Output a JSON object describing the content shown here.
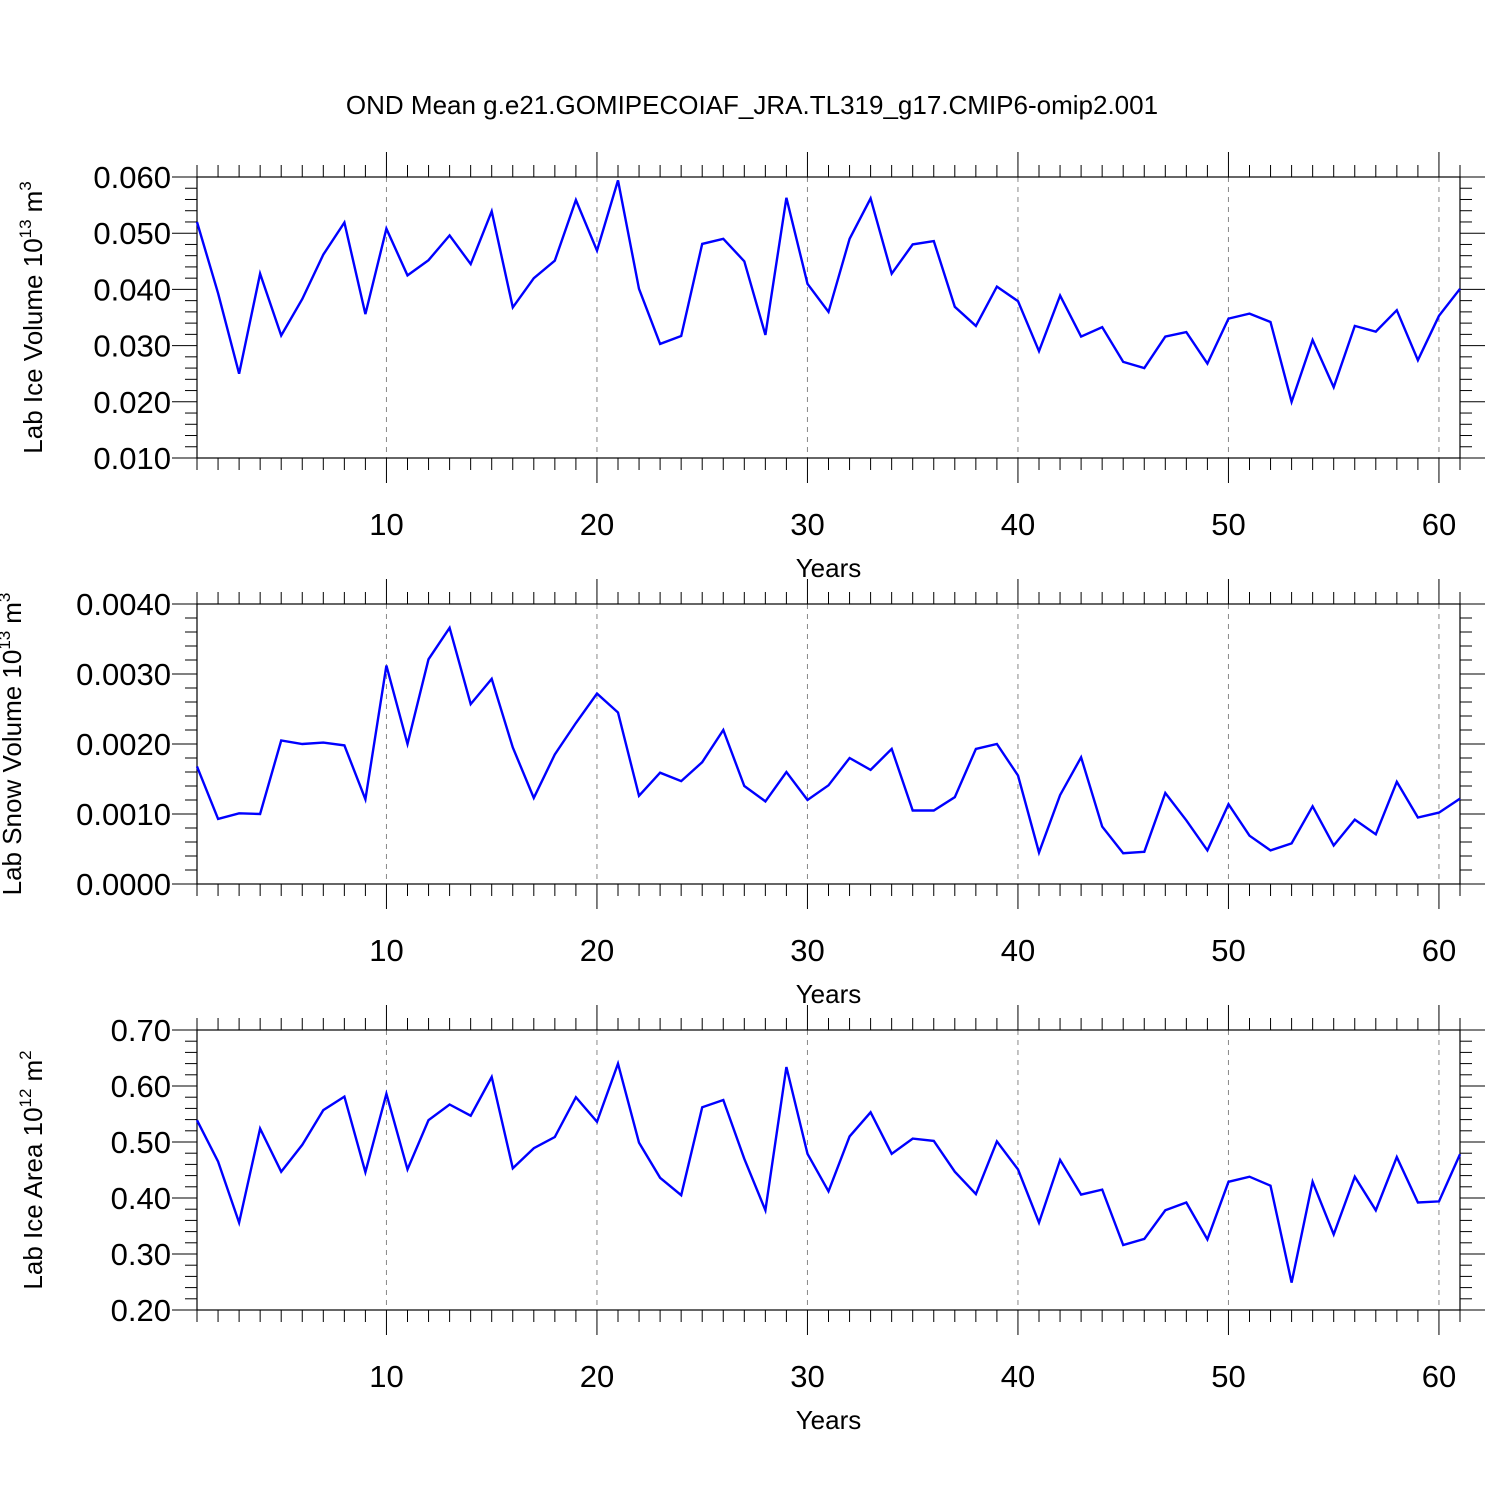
{
  "figure_title": "OND Mean g.e21.GOMIPECOIAF_JRA.TL319_g17.CMIP6-omip2.001",
  "line_color": "#0000ff",
  "chart_data": [
    {
      "type": "line",
      "ylabel_text": "Lab Ice Volume 10",
      "ylabel_exponent": "13",
      "ylabel_unit": "m",
      "ylabel_unit_exponent": "3",
      "xlabel": "Years",
      "xlim": [
        1,
        61
      ],
      "ylim": [
        0.01,
        0.06
      ],
      "ytick_values": [
        0.01,
        0.02,
        0.03,
        0.04,
        0.05,
        0.06
      ],
      "ytick_labels": [
        "0.010",
        "0.020",
        "0.030",
        "0.040",
        "0.050",
        "0.060"
      ],
      "xtick_values": [
        10,
        20,
        30,
        40,
        50,
        60
      ],
      "xtick_labels": [
        "10",
        "20",
        "30",
        "40",
        "50",
        "60"
      ],
      "vertical_dashed_grid": true,
      "series": [
        {
          "values": [
            0.052,
            0.0393,
            0.025,
            0.0428,
            0.0318,
            0.0383,
            0.0462,
            0.0519,
            0.0356,
            0.0508,
            0.0425,
            0.0452,
            0.0496,
            0.0445,
            0.0539,
            0.0368,
            0.042,
            0.0451,
            0.0559,
            0.0469,
            0.0594,
            0.0401,
            0.0303,
            0.0317,
            0.0481,
            0.049,
            0.045,
            0.0319,
            0.0563,
            0.041,
            0.036,
            0.049,
            0.0562,
            0.0428,
            0.048,
            0.0486,
            0.0369,
            0.0335,
            0.0405,
            0.0379,
            0.029,
            0.0389,
            0.0316,
            0.0333,
            0.0271,
            0.026,
            0.0316,
            0.0324,
            0.0268,
            0.0348,
            0.0357,
            0.0342,
            0.02,
            0.031,
            0.0226,
            0.0335,
            0.0325,
            0.0363,
            0.0274,
            0.0353,
            0.0401
          ]
        }
      ]
    },
    {
      "type": "line",
      "ylabel_text": "Lab Snow Volume 10",
      "ylabel_exponent": "13",
      "ylabel_unit": "m",
      "ylabel_unit_exponent": "3",
      "xlabel": "Years",
      "xlim": [
        1,
        61
      ],
      "ylim": [
        0.0,
        0.004
      ],
      "ytick_values": [
        0.0,
        0.001,
        0.002,
        0.003,
        0.004
      ],
      "ytick_labels": [
        "0.0000",
        "0.0010",
        "0.0020",
        "0.0030",
        "0.0040"
      ],
      "xtick_values": [
        10,
        20,
        30,
        40,
        50,
        60
      ],
      "xtick_labels": [
        "10",
        "20",
        "30",
        "40",
        "50",
        "60"
      ],
      "vertical_dashed_grid": true,
      "series": [
        {
          "values": [
            0.00168,
            0.00093,
            0.00101,
            0.001,
            0.00205,
            0.002,
            0.00202,
            0.00198,
            0.00121,
            0.00312,
            0.002,
            0.00321,
            0.00366,
            0.00257,
            0.00293,
            0.00195,
            0.00123,
            0.00185,
            0.0023,
            0.00272,
            0.00245,
            0.00126,
            0.00159,
            0.00147,
            0.00174,
            0.0022,
            0.0014,
            0.00118,
            0.0016,
            0.0012,
            0.00141,
            0.0018,
            0.00163,
            0.00193,
            0.00105,
            0.00105,
            0.00124,
            0.00193,
            0.002,
            0.00155,
            0.00045,
            0.00127,
            0.00181,
            0.00082,
            0.00044,
            0.00046,
            0.0013,
            0.00091,
            0.00048,
            0.00114,
            0.00069,
            0.00048,
            0.00058,
            0.00111,
            0.00055,
            0.00092,
            0.00071,
            0.00146,
            0.00095,
            0.00102,
            0.00122
          ]
        }
      ]
    },
    {
      "type": "line",
      "ylabel_text": "Lab Ice Area 10",
      "ylabel_exponent": "12",
      "ylabel_unit": "m",
      "ylabel_unit_exponent": "2",
      "xlabel": "Years",
      "xlim": [
        1,
        61
      ],
      "ylim": [
        0.2,
        0.7
      ],
      "ytick_values": [
        0.2,
        0.3,
        0.4,
        0.5,
        0.6,
        0.7
      ],
      "ytick_labels": [
        "0.20",
        "0.30",
        "0.40",
        "0.50",
        "0.60",
        "0.70"
      ],
      "xtick_values": [
        10,
        20,
        30,
        40,
        50,
        60
      ],
      "xtick_labels": [
        "10",
        "20",
        "30",
        "40",
        "50",
        "60"
      ],
      "vertical_dashed_grid": true,
      "series": [
        {
          "values": [
            0.539,
            0.465,
            0.356,
            0.524,
            0.447,
            0.495,
            0.557,
            0.581,
            0.446,
            0.586,
            0.451,
            0.539,
            0.567,
            0.547,
            0.616,
            0.453,
            0.489,
            0.509,
            0.58,
            0.536,
            0.64,
            0.499,
            0.436,
            0.405,
            0.562,
            0.575,
            0.47,
            0.378,
            0.634,
            0.479,
            0.412,
            0.51,
            0.553,
            0.479,
            0.506,
            0.502,
            0.447,
            0.407,
            0.501,
            0.451,
            0.356,
            0.468,
            0.406,
            0.415,
            0.316,
            0.327,
            0.378,
            0.392,
            0.326,
            0.429,
            0.438,
            0.422,
            0.249,
            0.429,
            0.335,
            0.438,
            0.378,
            0.473,
            0.392,
            0.394,
            0.478
          ]
        }
      ]
    }
  ]
}
